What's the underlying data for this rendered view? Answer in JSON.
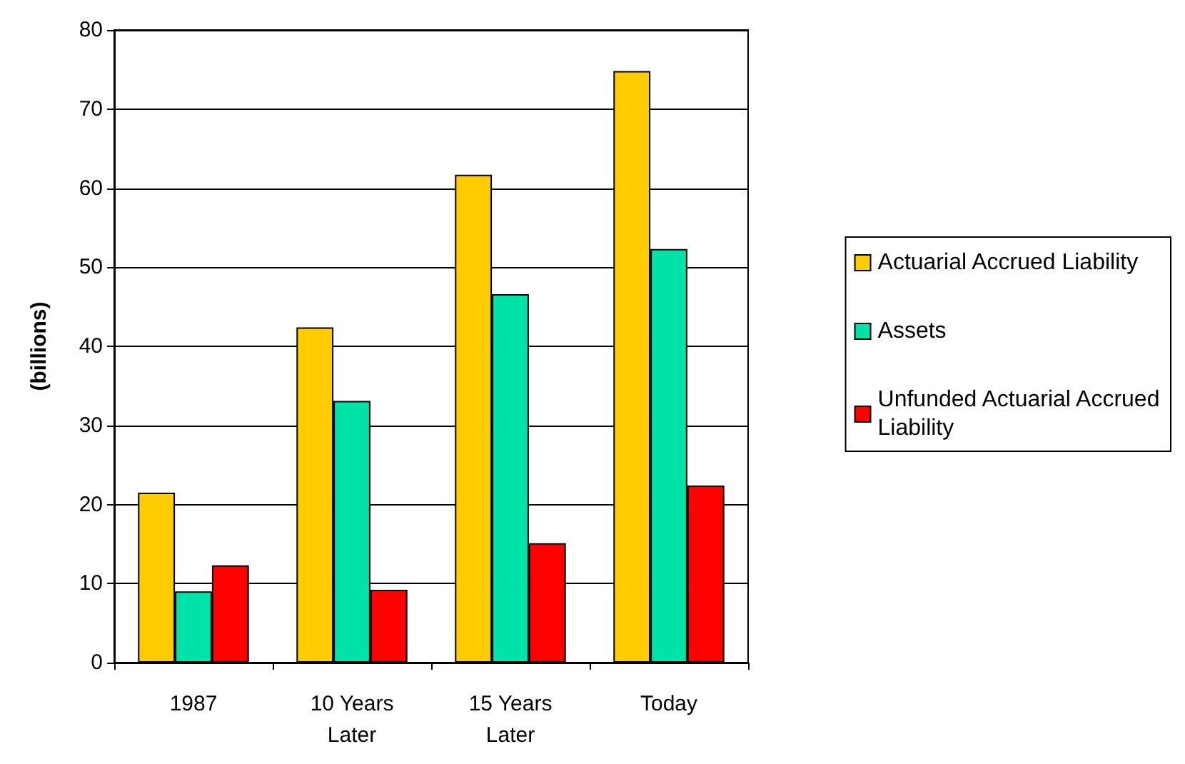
{
  "chart_data": {
    "type": "bar",
    "ylabel": "(billions)",
    "categories": [
      "1987",
      "10 Years\nLater",
      "15 Years\nLater",
      "Today"
    ],
    "series": [
      {
        "name": "Actuarial Accrued Liability",
        "color": "#ffcc00",
        "values": [
          21.5,
          42.4,
          61.7,
          74.8
        ]
      },
      {
        "name": "Assets",
        "color": "#00e3a8",
        "values": [
          9.0,
          33.1,
          46.6,
          52.3
        ]
      },
      {
        "name": "Unfunded Actuarial Accrued\nLiability",
        "color": "#ff0000",
        "values": [
          12.3,
          9.2,
          15.1,
          22.4
        ]
      }
    ],
    "ylim": [
      0,
      80
    ],
    "yticks": [
      0,
      10,
      20,
      30,
      40,
      50,
      60,
      70,
      80
    ],
    "grid": "y",
    "legend": "right"
  }
}
